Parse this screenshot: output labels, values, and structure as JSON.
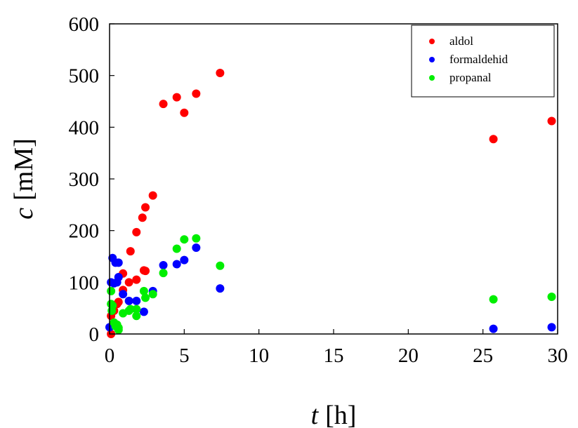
{
  "chart_data": {
    "type": "scatter",
    "xlabel": {
      "var": "t",
      "unit": "[h]"
    },
    "ylabel": {
      "var": "c",
      "unit": "[mM]"
    },
    "xlim": [
      0,
      30
    ],
    "ylim": [
      0,
      600
    ],
    "xticks": [
      "0",
      "5",
      "10",
      "15",
      "20",
      "25",
      "30"
    ],
    "yticks": [
      "0",
      "100",
      "200",
      "300",
      "400",
      "500",
      "600"
    ],
    "grid": false,
    "legend_position": "top-right",
    "series": [
      {
        "name": "aldol",
        "color": "#ff0000",
        "points": [
          [
            0.1,
            0
          ],
          [
            0.1,
            35
          ],
          [
            0.3,
            45
          ],
          [
            0.5,
            58
          ],
          [
            0.6,
            62
          ],
          [
            0.9,
            85
          ],
          [
            0.9,
            117
          ],
          [
            1.3,
            100
          ],
          [
            1.4,
            160
          ],
          [
            1.8,
            105
          ],
          [
            1.8,
            197
          ],
          [
            2.2,
            225
          ],
          [
            2.3,
            123
          ],
          [
            2.4,
            122
          ],
          [
            2.4,
            245
          ],
          [
            2.9,
            268
          ],
          [
            3.6,
            445
          ],
          [
            4.5,
            458
          ],
          [
            5.0,
            428
          ],
          [
            5.8,
            465
          ],
          [
            7.4,
            505
          ],
          [
            25.7,
            377
          ],
          [
            29.6,
            412
          ]
        ]
      },
      {
        "name": "formaldehid",
        "color": "#0000ff",
        "points": [
          [
            0.0,
            13
          ],
          [
            0.1,
            100
          ],
          [
            0.2,
            147
          ],
          [
            0.3,
            98
          ],
          [
            0.4,
            138
          ],
          [
            0.5,
            100
          ],
          [
            0.6,
            110
          ],
          [
            0.6,
            138
          ],
          [
            0.9,
            77
          ],
          [
            1.3,
            64
          ],
          [
            1.8,
            64
          ],
          [
            2.3,
            43
          ],
          [
            2.9,
            83
          ],
          [
            3.6,
            133
          ],
          [
            4.5,
            135
          ],
          [
            5.0,
            143
          ],
          [
            5.8,
            167
          ],
          [
            7.4,
            88
          ],
          [
            25.7,
            10
          ],
          [
            29.6,
            13
          ]
        ]
      },
      {
        "name": "propanal",
        "color": "#00ee00",
        "points": [
          [
            0.1,
            83
          ],
          [
            0.1,
            58
          ],
          [
            0.15,
            45
          ],
          [
            0.2,
            55
          ],
          [
            0.3,
            22
          ],
          [
            0.4,
            15
          ],
          [
            0.5,
            18
          ],
          [
            0.6,
            8
          ],
          [
            0.6,
            12
          ],
          [
            0.9,
            40
          ],
          [
            1.3,
            45
          ],
          [
            1.4,
            48
          ],
          [
            1.8,
            35
          ],
          [
            1.8,
            48
          ],
          [
            2.3,
            83
          ],
          [
            2.4,
            70
          ],
          [
            2.9,
            77
          ],
          [
            3.6,
            118
          ],
          [
            4.5,
            165
          ],
          [
            5.0,
            183
          ],
          [
            5.8,
            185
          ],
          [
            7.4,
            132
          ],
          [
            25.7,
            67
          ],
          [
            29.6,
            72
          ]
        ]
      }
    ]
  }
}
